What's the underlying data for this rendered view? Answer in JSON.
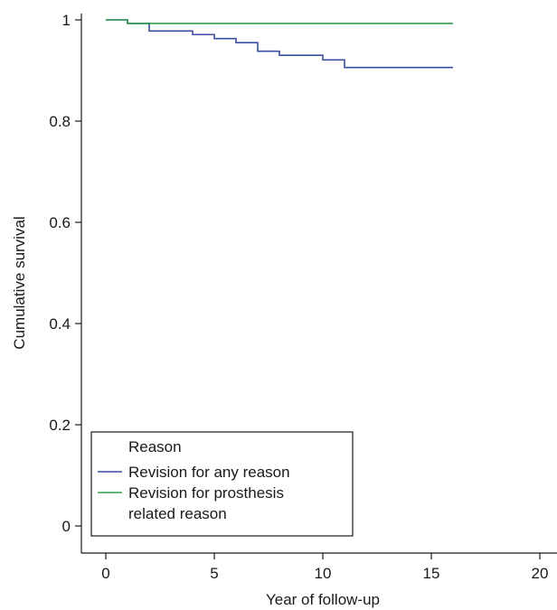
{
  "chart_data": {
    "type": "line",
    "step": true,
    "title": "",
    "xlabel": "Year of follow-up",
    "ylabel": "Cumulative survival",
    "xlim": [
      0,
      20
    ],
    "ylim": [
      0,
      1
    ],
    "x_ticks": [
      0,
      5,
      10,
      15,
      20
    ],
    "y_ticks": [
      0,
      0.2,
      0.4,
      0.6,
      0.8,
      1
    ],
    "y_tick_labels": [
      "0",
      "0.2",
      "0.4",
      "0.6",
      "0.8",
      "1"
    ],
    "grid": false,
    "legend": {
      "title": "Reason",
      "position": "bottom-left",
      "entries": [
        "Revision for any reason",
        "Revision for prosthesis related reason"
      ]
    },
    "series": [
      {
        "name": "Revision for any reason",
        "color": "#3a4fa0",
        "x": [
          0,
          1,
          2,
          4,
          5,
          6,
          7,
          8,
          10,
          11,
          16
        ],
        "y": [
          1.0,
          0.993,
          0.978,
          0.971,
          0.963,
          0.955,
          0.938,
          0.93,
          0.921,
          0.906,
          0.906
        ]
      },
      {
        "name": "Revision for prosthesis related reason",
        "color": "#2e9e4a",
        "x": [
          0,
          1,
          16
        ],
        "y": [
          1.0,
          0.993,
          0.993
        ]
      }
    ]
  }
}
